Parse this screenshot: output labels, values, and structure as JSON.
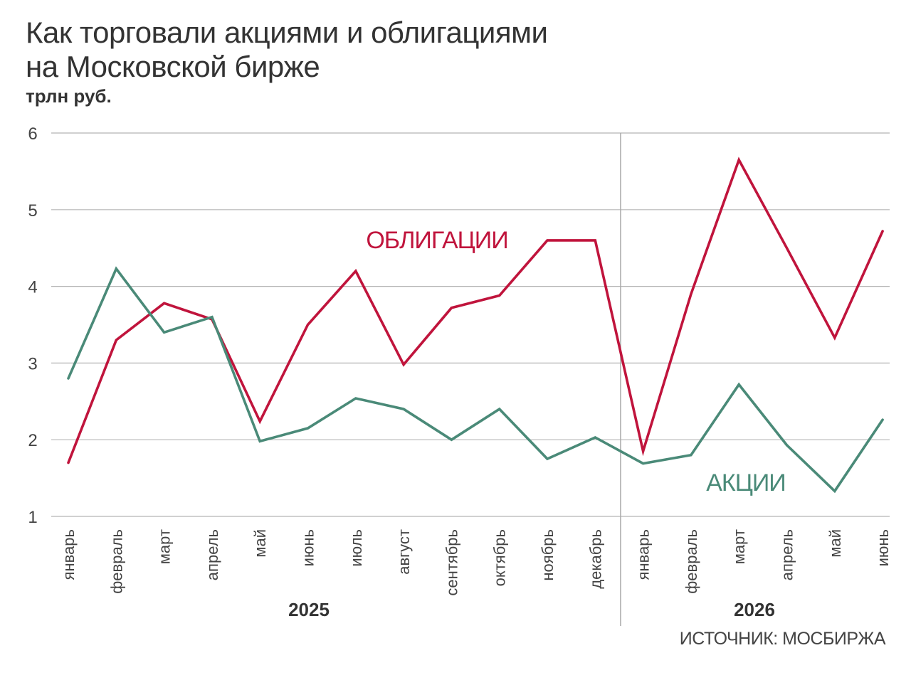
{
  "title_line1": "Как торговали акциями и облигациями",
  "title_line2": "на Московской бирже",
  "unit": "трлн руб.",
  "source": "ИСТОЧНИК: МОСБИРЖА",
  "chart_data": {
    "type": "line",
    "x": [
      "январь",
      "февраль",
      "март",
      "апрель",
      "май",
      "июнь",
      "июль",
      "август",
      "сентябрь",
      "октябрь",
      "ноябрь",
      "декабрь",
      "январь",
      "февраль",
      "март",
      "апрель",
      "май",
      "июнь"
    ],
    "groups": [
      {
        "label": "2025",
        "from": 0,
        "to": 11
      },
      {
        "label": "2026",
        "from": 12,
        "to": 17
      }
    ],
    "ylim": [
      1,
      6
    ],
    "yticks": [
      1,
      2,
      3,
      4,
      5,
      6
    ],
    "grid": true,
    "series": [
      {
        "name": "ОБЛИГАЦИИ",
        "color": "#c0143c",
        "values": [
          1.7,
          3.3,
          3.78,
          3.57,
          2.24,
          3.5,
          4.2,
          2.98,
          3.72,
          3.88,
          4.6,
          4.6,
          1.85,
          3.9,
          5.65,
          4.5,
          3.33,
          4.72
        ]
      },
      {
        "name": "АКЦИИ",
        "color": "#4a8a78",
        "values": [
          2.8,
          4.23,
          3.4,
          3.6,
          1.98,
          2.15,
          2.54,
          2.4,
          2.0,
          2.4,
          1.75,
          2.03,
          1.69,
          1.8,
          2.72,
          1.93,
          1.33,
          2.26
        ]
      }
    ]
  }
}
